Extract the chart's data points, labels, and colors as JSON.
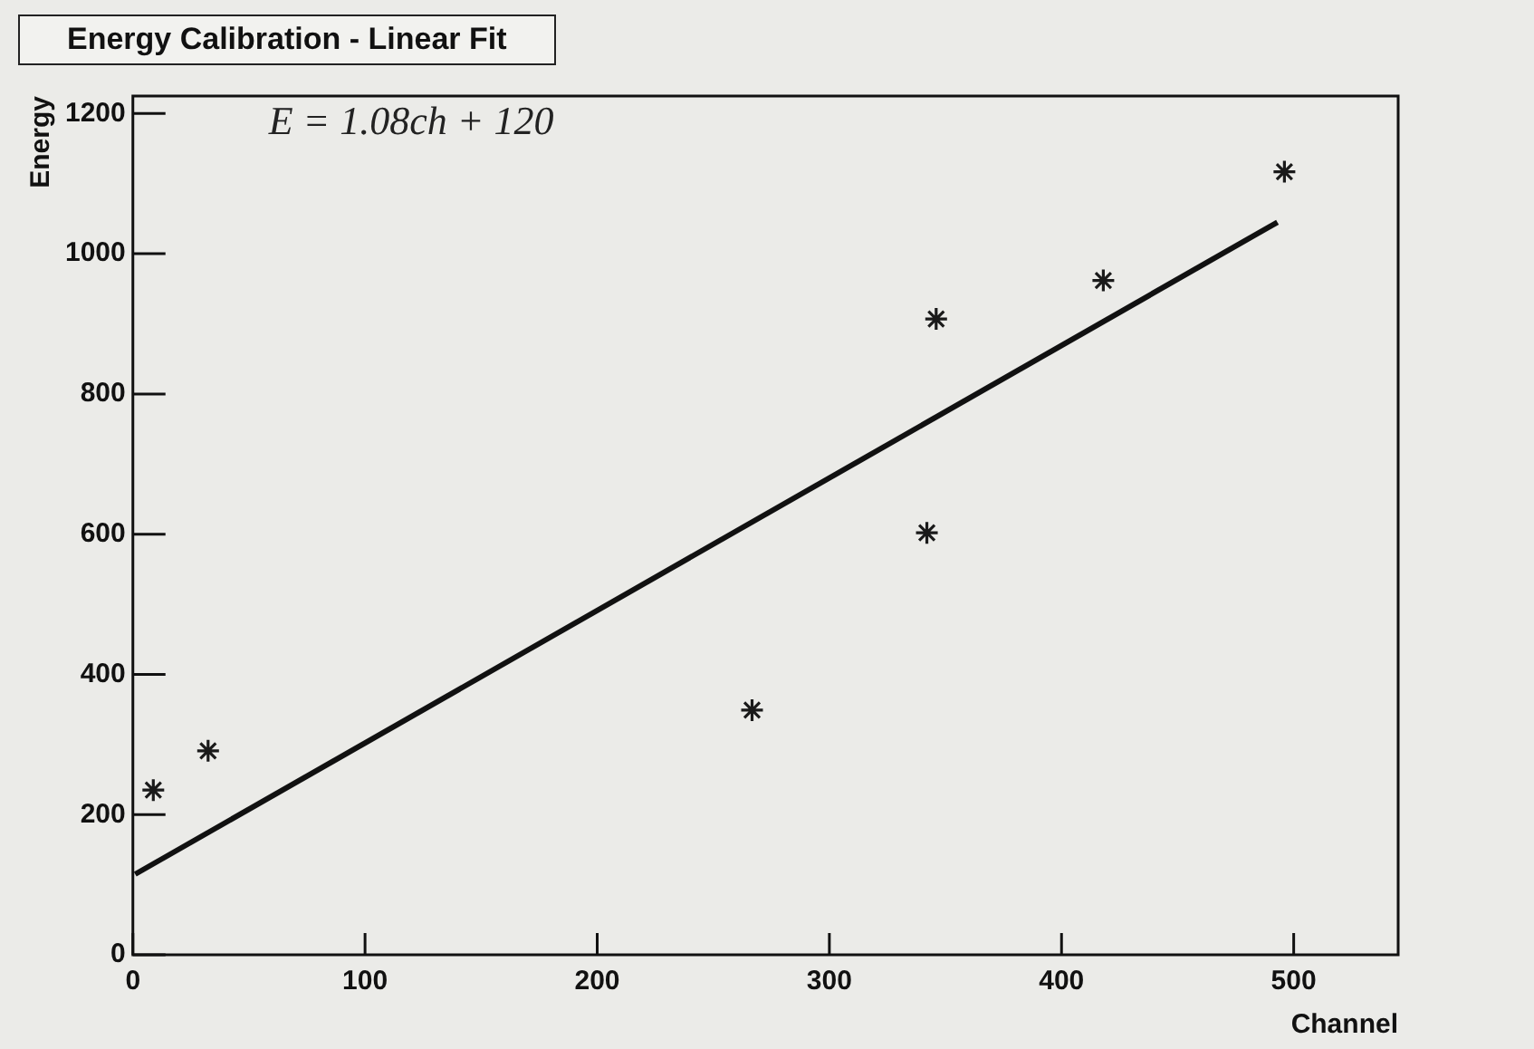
{
  "chart_data": {
    "type": "scatter",
    "title": "Energy Calibration - Linear Fit",
    "xlabel": "Channel",
    "ylabel": "Energy",
    "annotations": [
      "E = 1.08ch + 120"
    ],
    "xlim": [
      0,
      545
    ],
    "xticks": [
      0,
      100,
      200,
      300,
      400,
      500
    ],
    "ylim": [
      0,
      1225
    ],
    "yticks": [
      0,
      200,
      400,
      600,
      800,
      1000,
      1200
    ],
    "marker": "cross",
    "legend": false,
    "series": [
      {
        "type": "scatter",
        "color": "#1a1a1a",
        "x": [
          8.8,
          32.4,
          266.7,
          342,
          346,
          418,
          496
        ],
        "values": [
          235,
          291,
          349,
          602,
          907,
          962,
          1117
        ]
      },
      {
        "type": "line",
        "color": "#111111",
        "marker": "none",
        "line_style": "solid",
        "x": [
          1,
          493
        ],
        "values": [
          115,
          1045
        ]
      }
    ]
  }
}
